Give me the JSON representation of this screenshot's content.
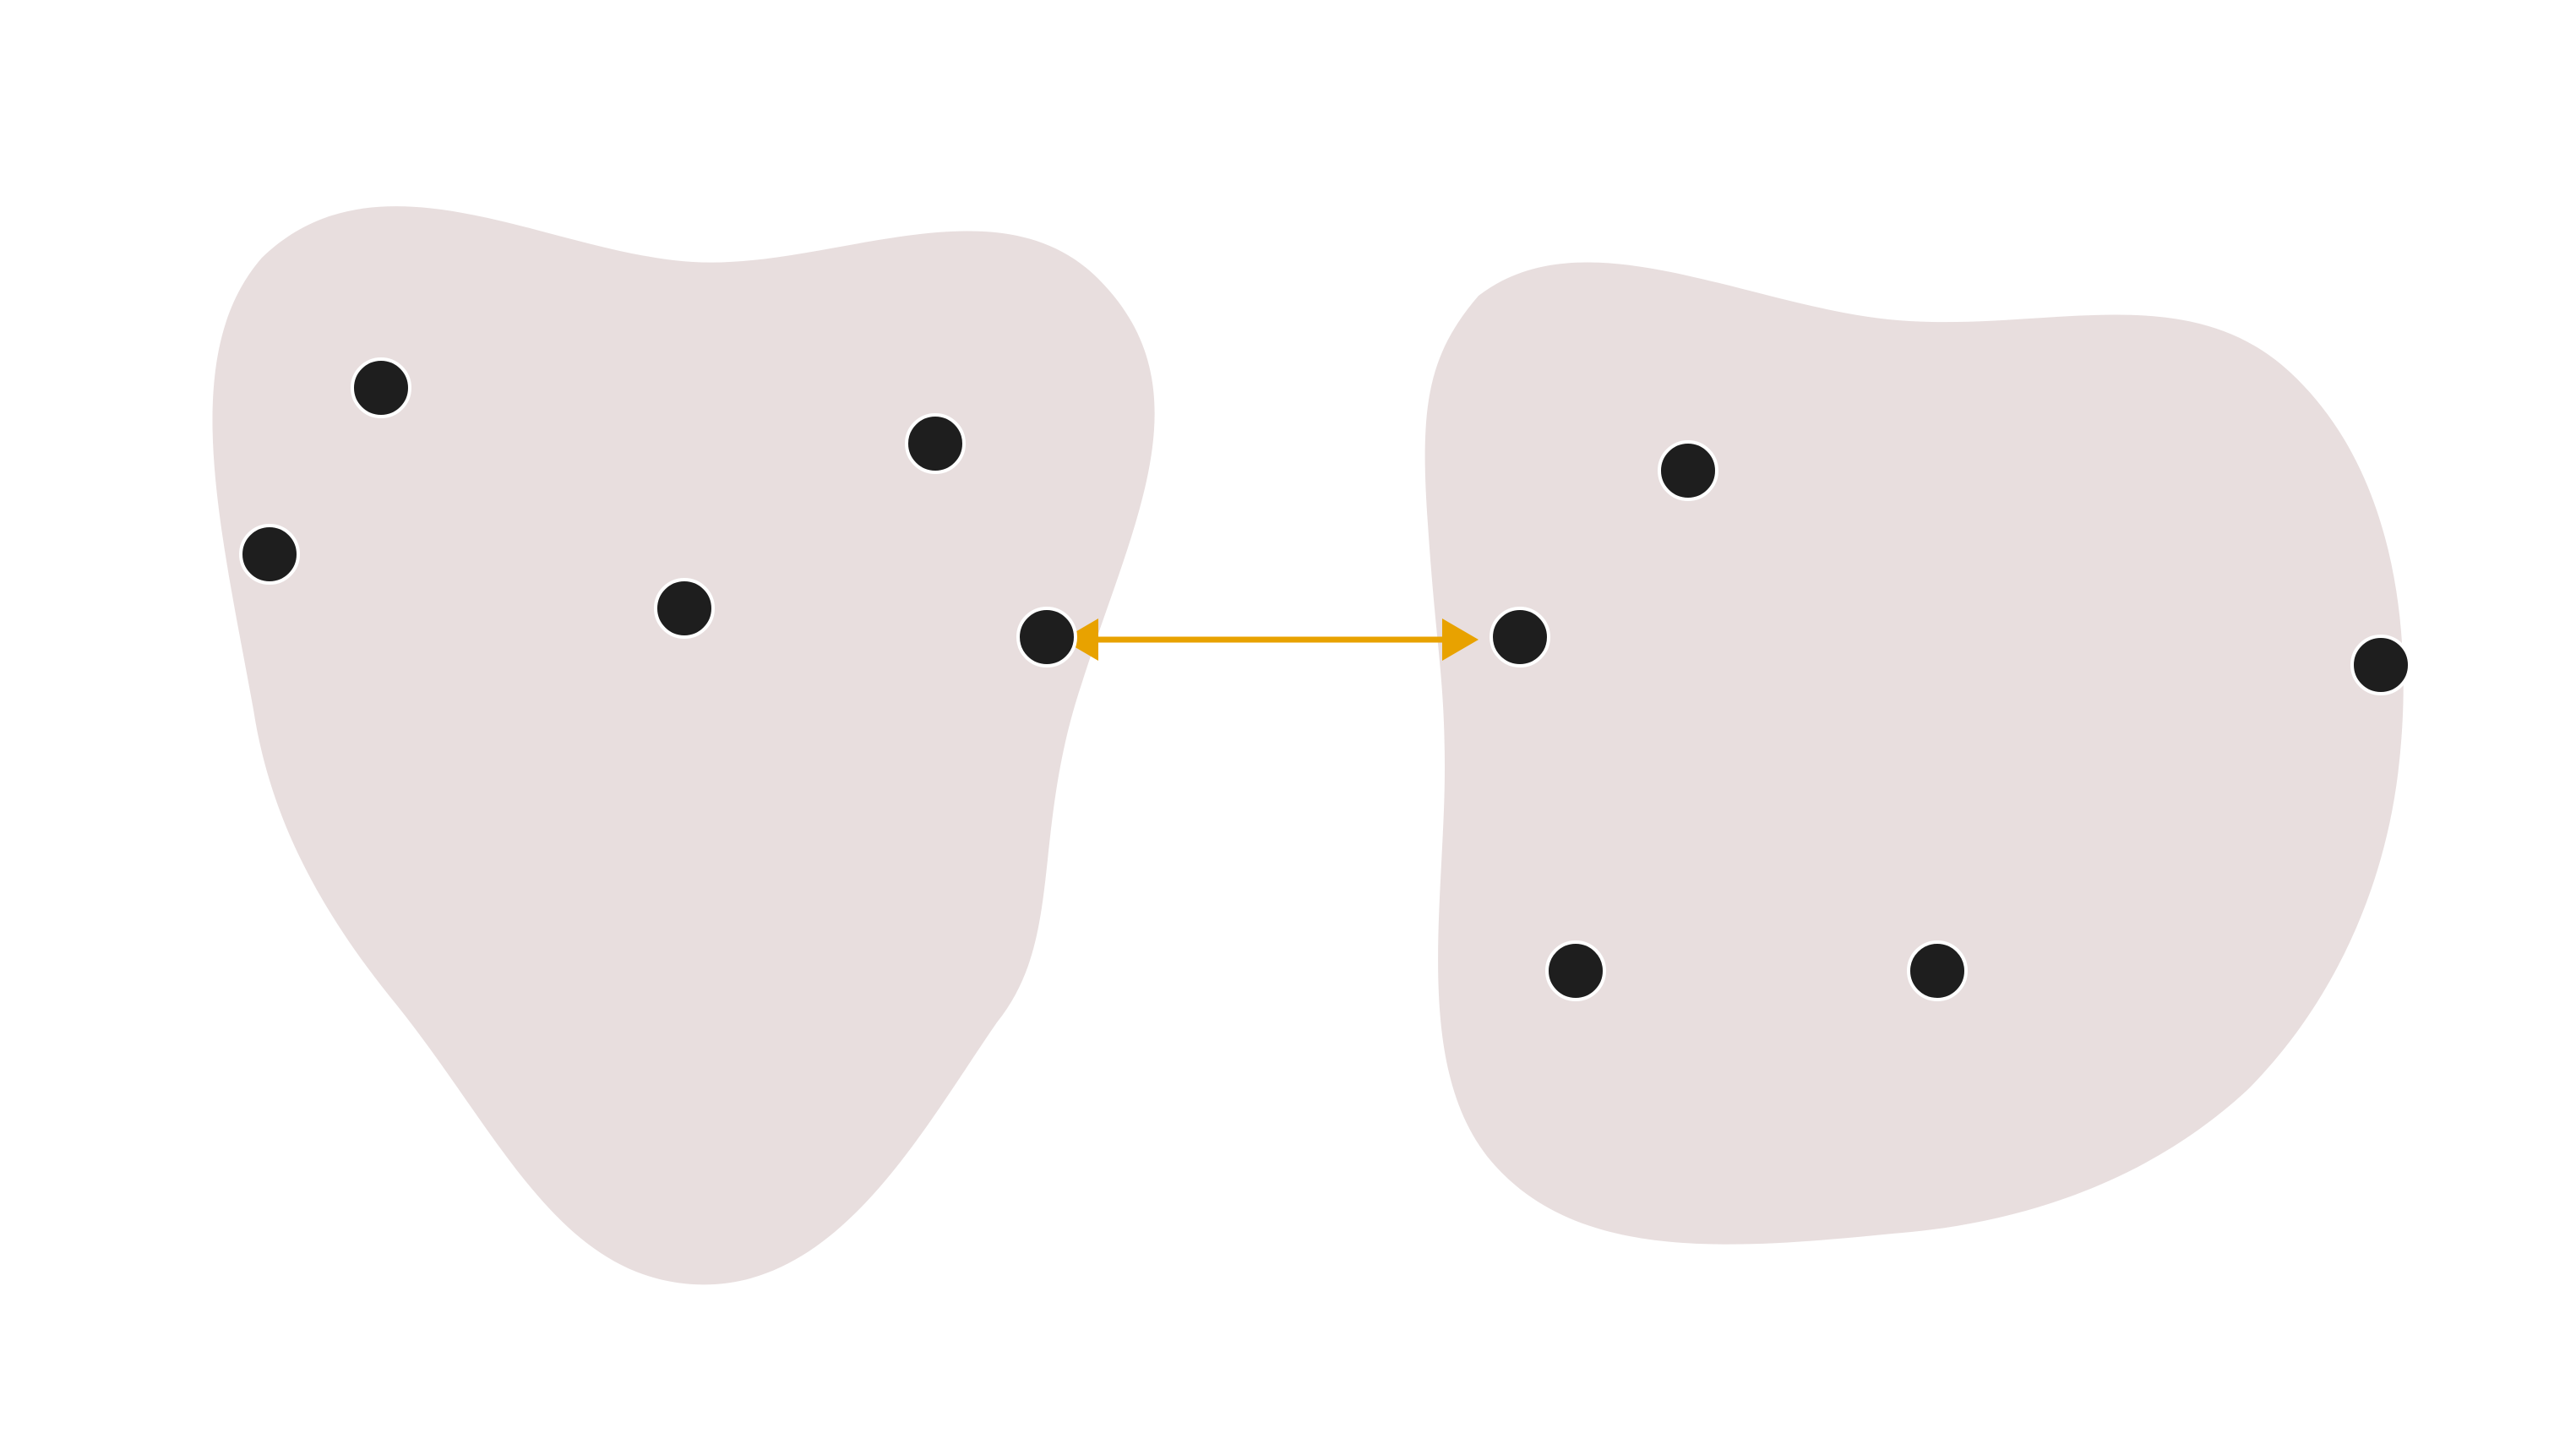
{
  "colors": {
    "background": "#ffffff",
    "cluster_fill": "#e8dede",
    "point_fill": "#1e1e1e",
    "point_stroke": "#ffffff",
    "arrow": "#e8a200"
  },
  "clusters": [
    {
      "name": "left-cluster",
      "points": 5
    },
    {
      "name": "right-cluster",
      "points": 5
    }
  ],
  "connector": {
    "type": "double-headed-arrow",
    "from": "left-cluster",
    "to": "right-cluster"
  }
}
